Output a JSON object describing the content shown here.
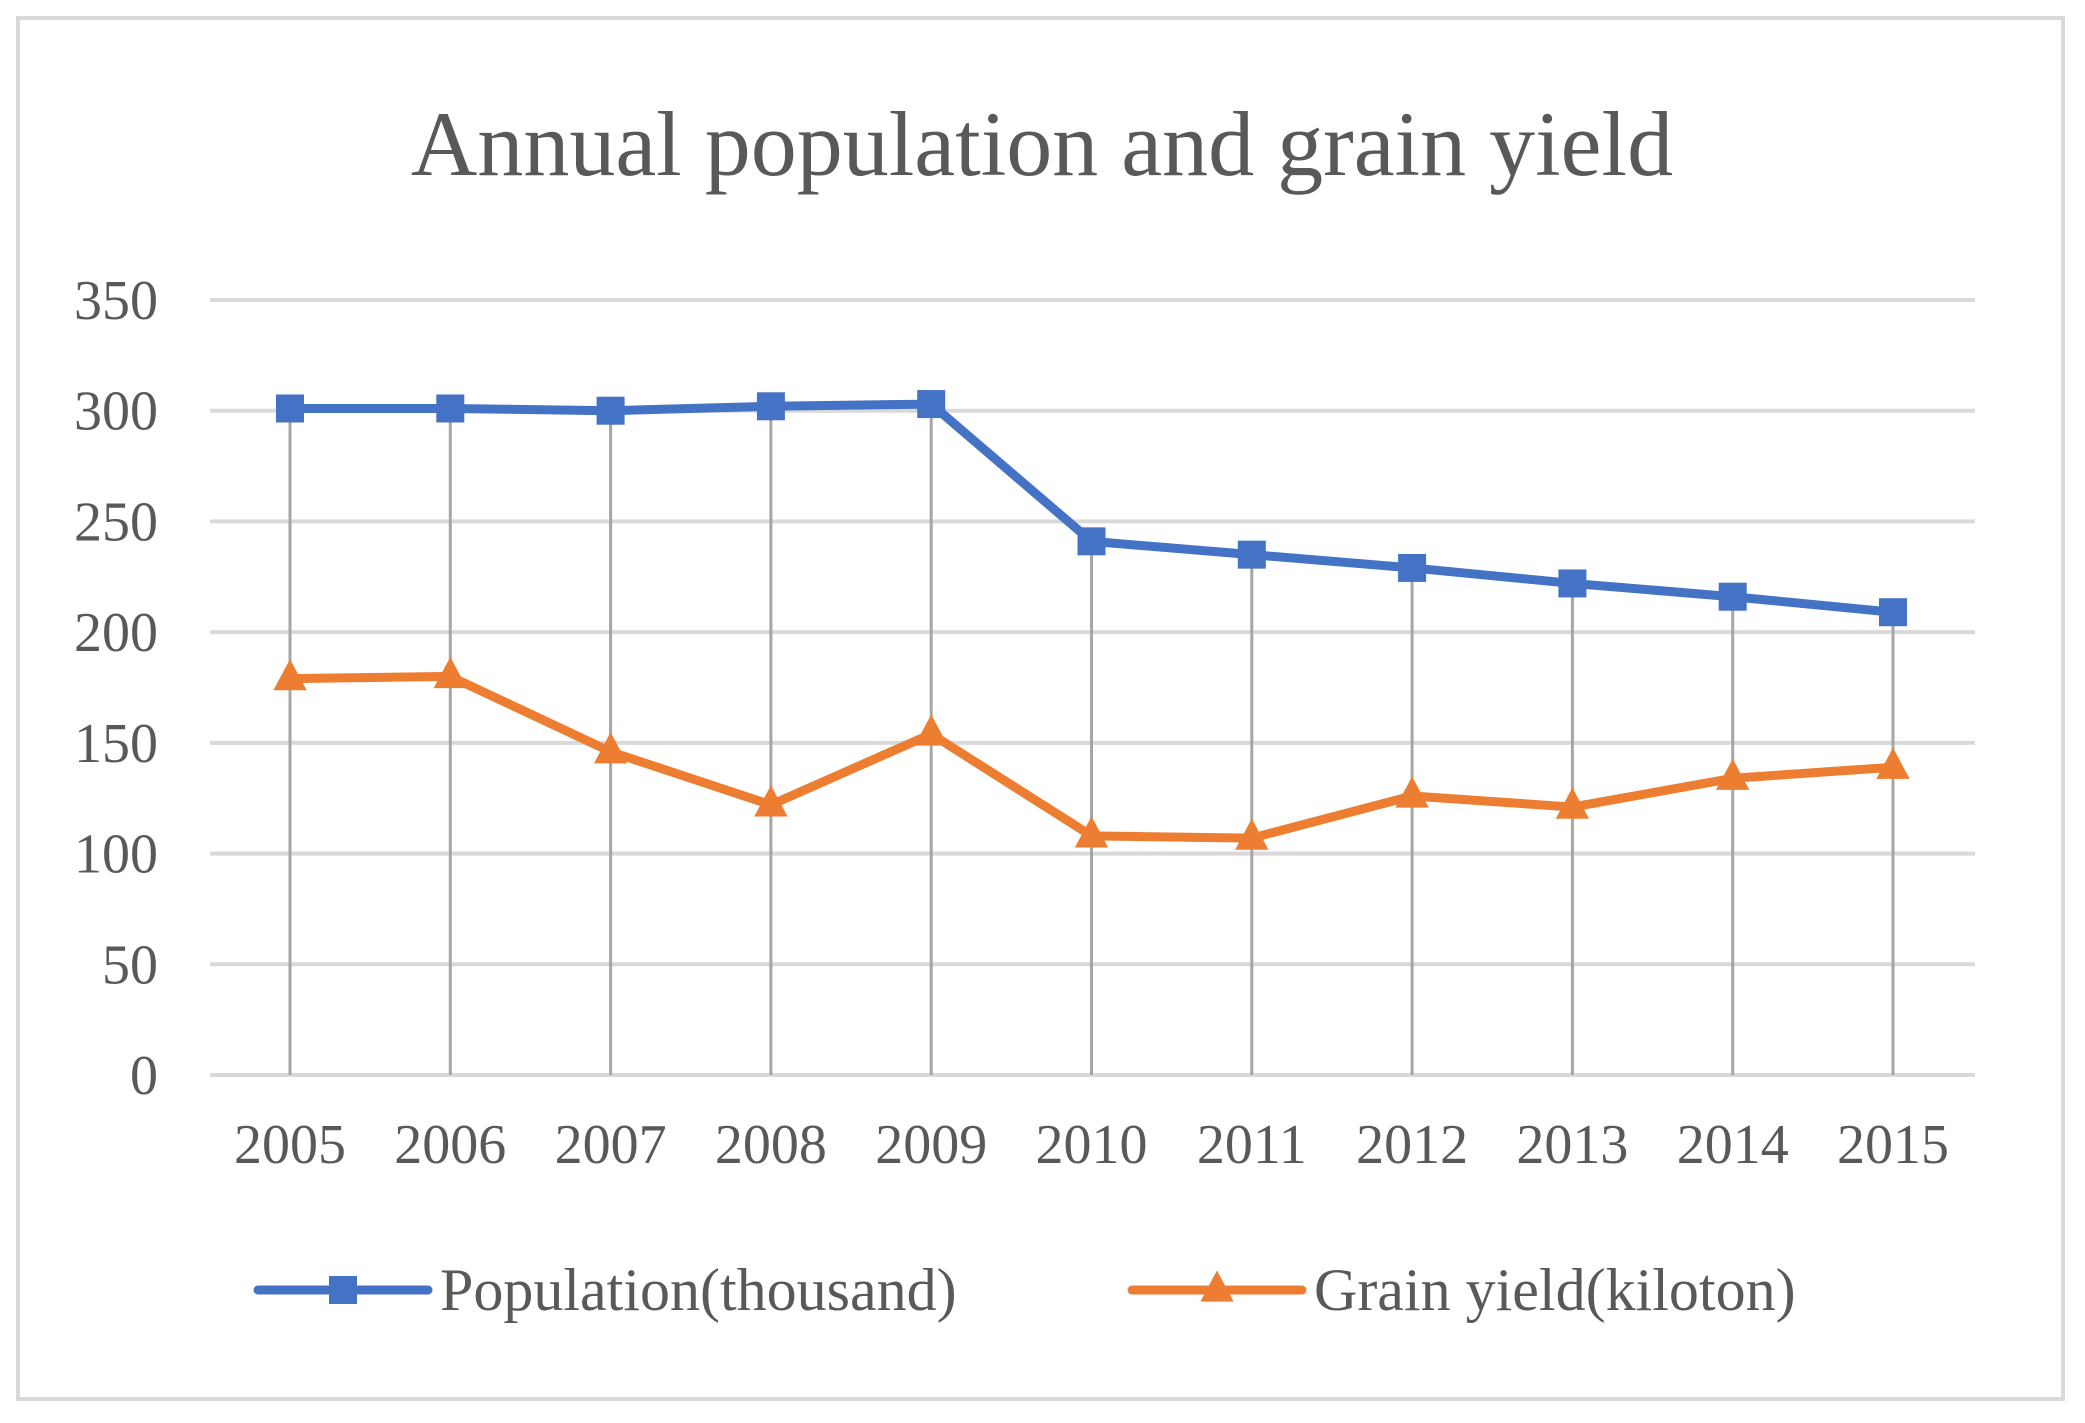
{
  "chart_data": {
    "type": "line",
    "title": "Annual population and grain yield",
    "xlabel": "",
    "ylabel": "",
    "categories": [
      "2005",
      "2006",
      "2007",
      "2008",
      "2009",
      "2010",
      "2011",
      "2012",
      "2013",
      "2014",
      "2015"
    ],
    "ylim": [
      0,
      350
    ],
    "yticks": [
      0,
      50,
      100,
      150,
      200,
      250,
      300,
      350
    ],
    "grid": true,
    "drop_lines": true,
    "legend_position": "bottom",
    "series": [
      {
        "name": "Population(thousand)",
        "color": "#4472c4",
        "marker": "square",
        "values": [
          301,
          301,
          300,
          302,
          303,
          241,
          235,
          229,
          222,
          216,
          209
        ]
      },
      {
        "name": "Grain yield(kiloton)",
        "color": "#ed7d31",
        "marker": "triangle",
        "values": [
          179,
          180,
          146,
          122,
          154,
          108,
          107,
          126,
          121,
          134,
          139
        ]
      }
    ]
  }
}
